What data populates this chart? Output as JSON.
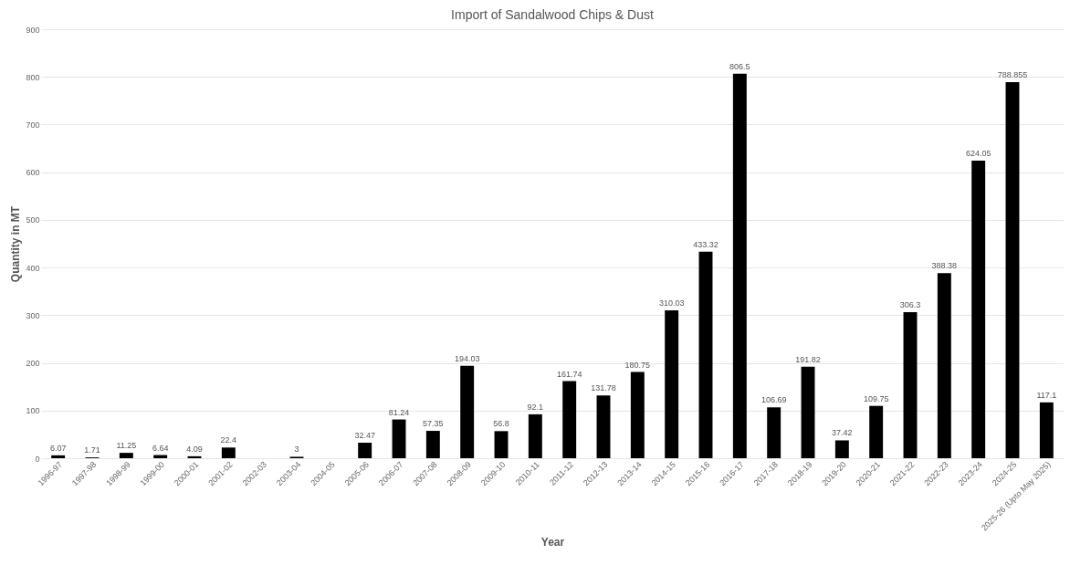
{
  "chart_data": {
    "type": "bar",
    "title": "Import of Sandalwood Chips & Dust",
    "xlabel": "Year",
    "ylabel": "Quantity in MT",
    "categories": [
      "1996-97",
      "1997-98",
      "1998-99",
      "1999-00",
      "2000-01",
      "2001-02",
      "2002-03",
      "2003-04",
      "2004-05",
      "2005-06",
      "2006-07",
      "2007-08",
      "2008-09",
      "2009-10",
      "2010-11",
      "2011-12",
      "2012-13",
      "2013-14",
      "2014-15",
      "2015-16",
      "2016-17",
      "2017-18",
      "2018-19",
      "2019-20",
      "2020-21",
      "2021-22",
      "2022-23",
      "2023-24",
      "2024-25",
      "2025-26 (Upto May 2025)"
    ],
    "values": [
      6.07,
      1.71,
      11.25,
      6.64,
      4.09,
      22.4,
      null,
      3,
      null,
      32.47,
      81.24,
      57.35,
      194.03,
      56.8,
      92.1,
      161.74,
      131.78,
      180.75,
      310.03,
      433.32,
      806.5,
      106.69,
      191.82,
      37.42,
      109.75,
      306.3,
      388.38,
      624.05,
      788.855,
      117.1
    ],
    "color": "#000000",
    "ylim": [
      0,
      900
    ],
    "yticks": [
      0,
      100,
      200,
      300,
      400,
      500,
      600,
      700,
      800,
      900
    ],
    "grid": "y",
    "data_labels": true
  }
}
